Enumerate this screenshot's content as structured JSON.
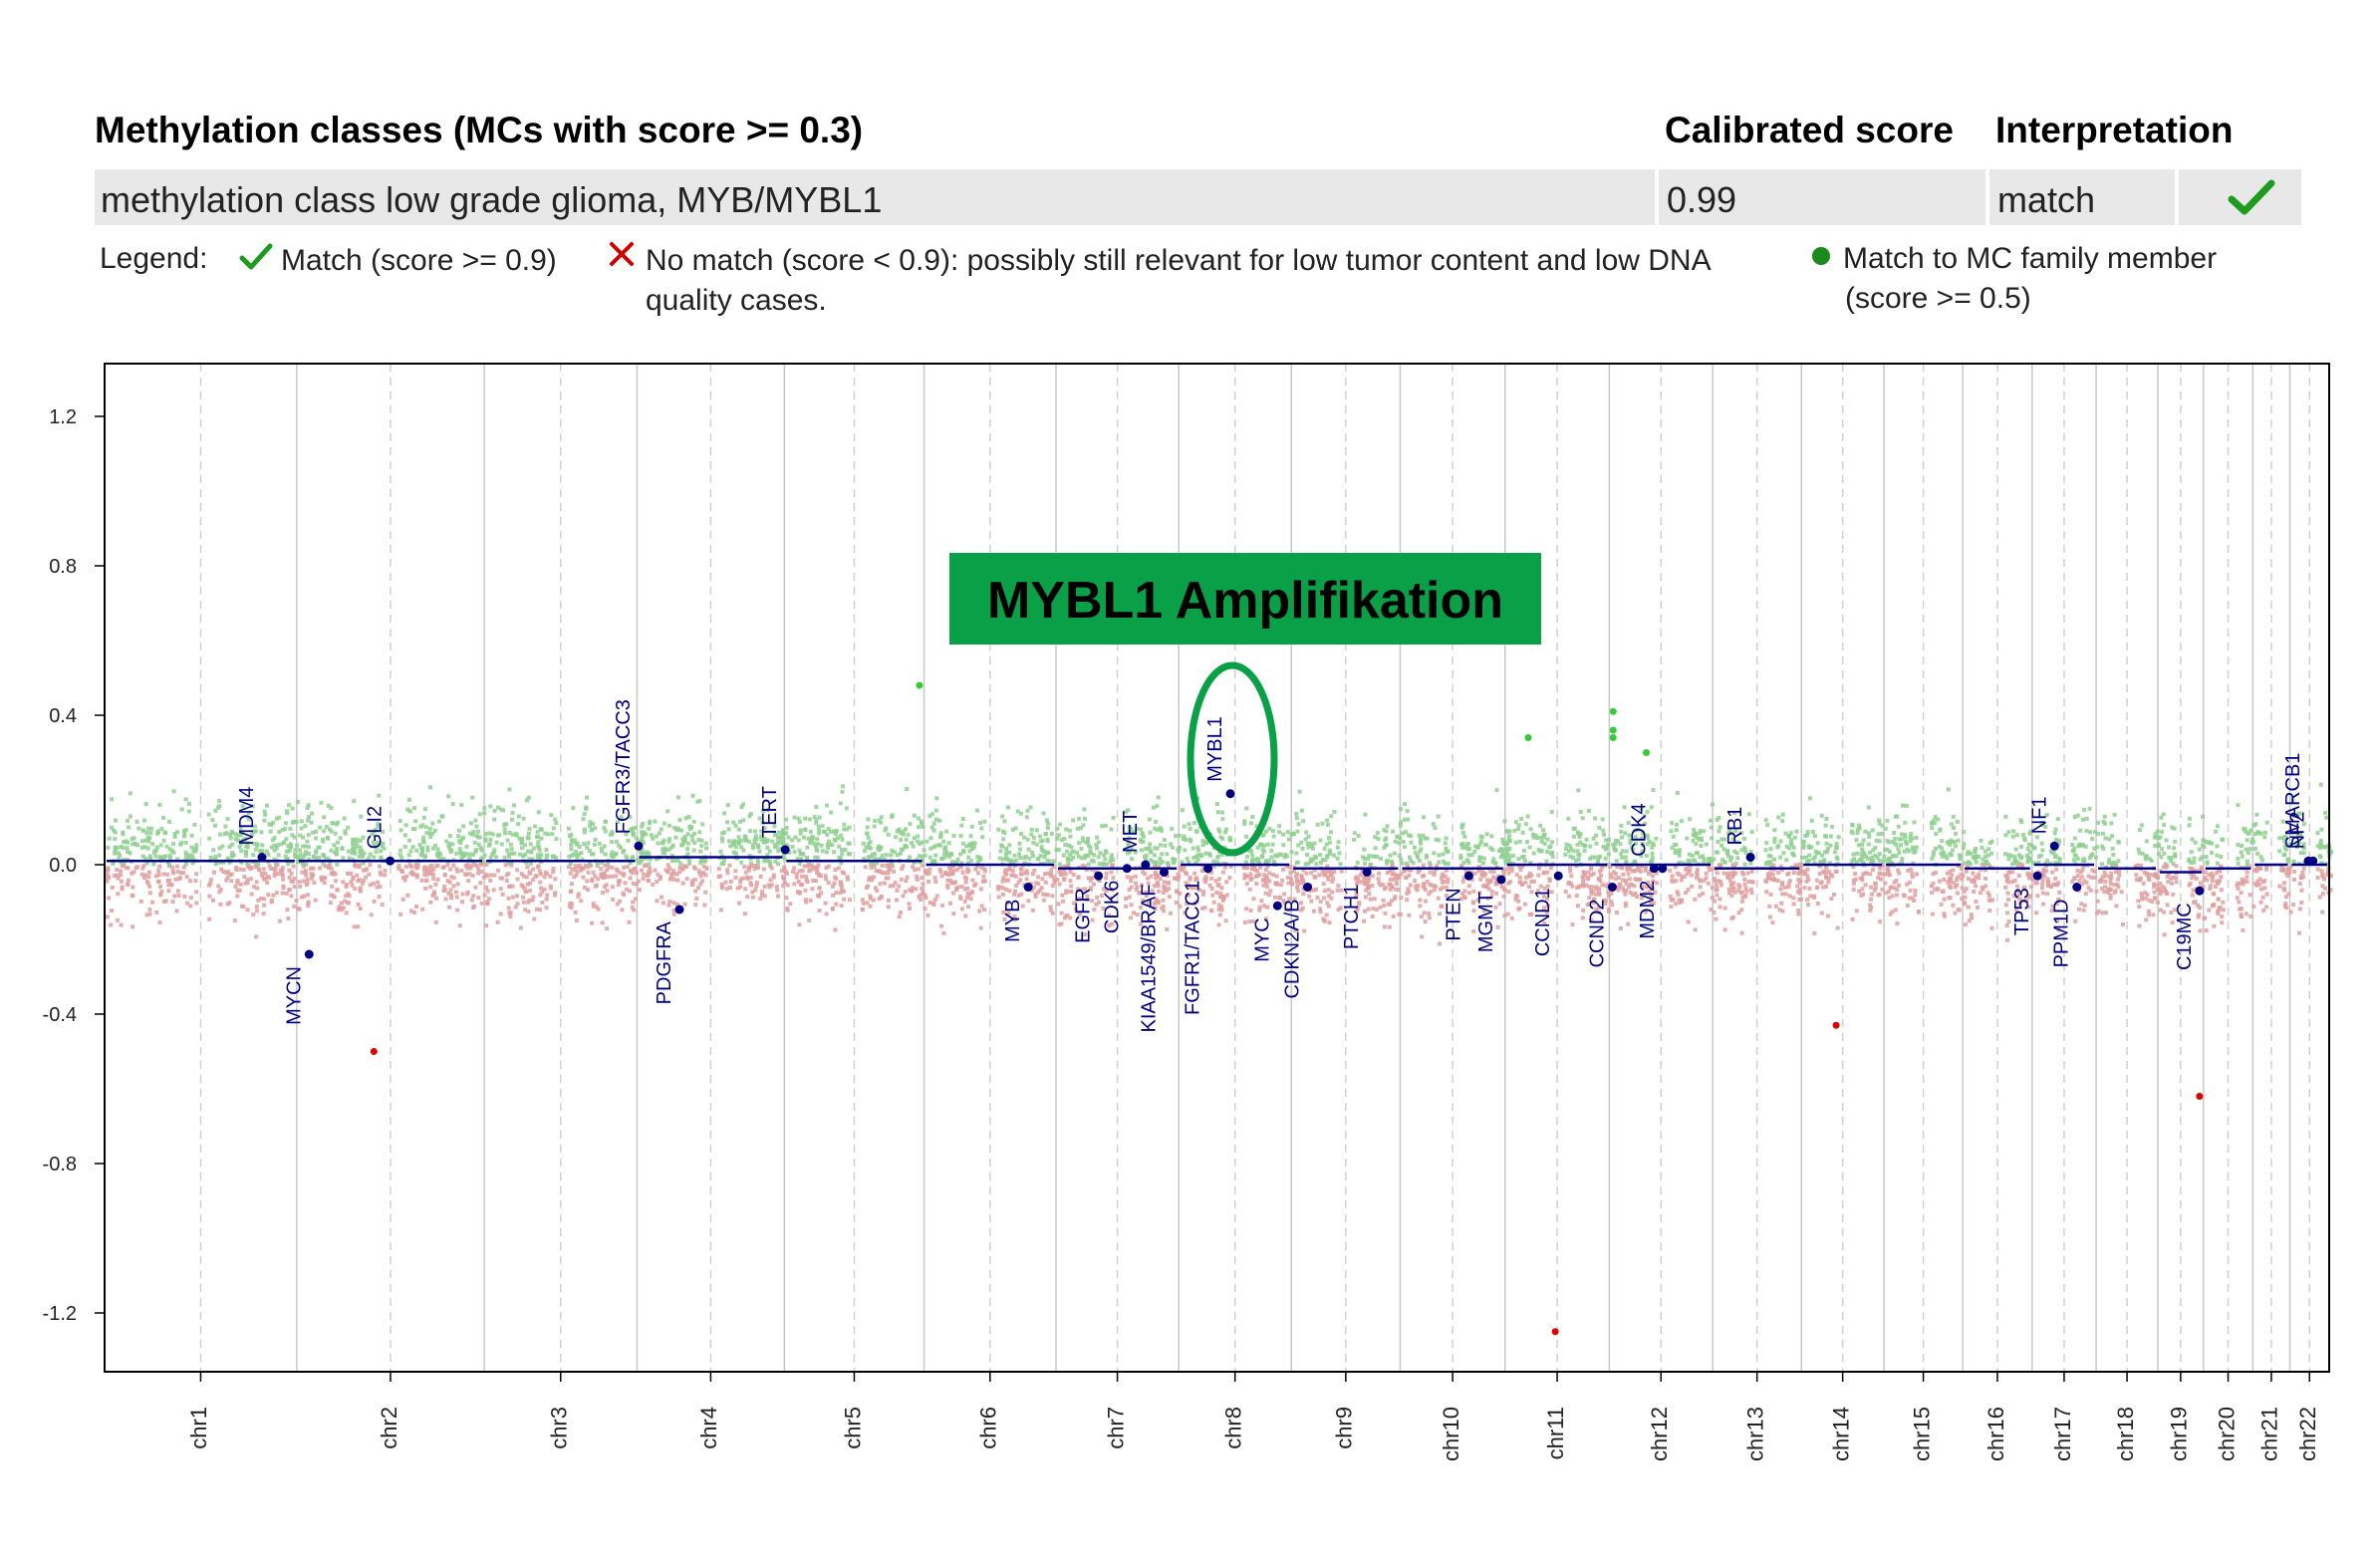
{
  "table": {
    "header": {
      "classes": "Methylation classes (MCs with score >= 0.3)",
      "score": "Calibrated score",
      "interpretation": "Interpretation"
    },
    "row": {
      "class_name": "methylation class low grade glioma, MYB/MYBL1",
      "score": "0.99",
      "interpretation": "match",
      "status_icon": "check-icon"
    }
  },
  "legend": {
    "title": "Legend:",
    "match": "Match (score >= 0.9)",
    "no_match_line1": "No match (score < 0.9): possibly still relevant for low tumor content and low DNA",
    "no_match_line2": "quality cases.",
    "family_line1": "Match to MC family member",
    "family_line2": "(score >= 0.5)"
  },
  "colors": {
    "gain": "#8fd08f",
    "loss": "#e0a0a0",
    "segment": "#00008b",
    "gene": "#000080",
    "annotation_fill": "#0aa048",
    "outlier_red": "#dd0000",
    "outlier_green": "#33cc33",
    "check_green": "#1e9b1e",
    "cross_red": "#cc0000"
  },
  "annotation": {
    "label": "MYBL1 Amplifikation"
  },
  "chart_data": {
    "type": "scatter",
    "title": "",
    "xlabel": "",
    "ylabel": "",
    "ylim": [
      -1.35,
      1.35
    ],
    "yticks": [
      "-1.2",
      "-0.8",
      "-0.4",
      "0.0",
      "0.4",
      "0.8",
      "1.2"
    ],
    "grid": "vertical chromosome boundaries",
    "chromosomes": [
      {
        "name": "chr1",
        "length": 249
      },
      {
        "name": "chr2",
        "length": 243
      },
      {
        "name": "chr3",
        "length": 198
      },
      {
        "name": "chr4",
        "length": 191
      },
      {
        "name": "chr5",
        "length": 181
      },
      {
        "name": "chr6",
        "length": 171
      },
      {
        "name": "chr7",
        "length": 159
      },
      {
        "name": "chr8",
        "length": 146
      },
      {
        "name": "chr9",
        "length": 141
      },
      {
        "name": "chr10",
        "length": 136
      },
      {
        "name": "chr11",
        "length": 135
      },
      {
        "name": "chr12",
        "length": 134
      },
      {
        "name": "chr13",
        "length": 115
      },
      {
        "name": "chr14",
        "length": 107
      },
      {
        "name": "chr15",
        "length": 102
      },
      {
        "name": "chr16",
        "length": 90
      },
      {
        "name": "chr17",
        "length": 83
      },
      {
        "name": "chr18",
        "length": 80
      },
      {
        "name": "chr19",
        "length": 59
      },
      {
        "name": "chr20",
        "length": 64
      },
      {
        "name": "chr21",
        "length": 48
      },
      {
        "name": "chr22",
        "length": 51
      }
    ],
    "segments": [
      {
        "chr": "chr1",
        "value": 0.01
      },
      {
        "chr": "chr2",
        "value": 0.01
      },
      {
        "chr": "chr3",
        "value": 0.01
      },
      {
        "chr": "chr4",
        "value": 0.02
      },
      {
        "chr": "chr5",
        "value": 0.01
      },
      {
        "chr": "chr6",
        "value": 0.0
      },
      {
        "chr": "chr7",
        "value": -0.01
      },
      {
        "chr": "chr8",
        "value": 0.0
      },
      {
        "chr": "chr9",
        "value": -0.01
      },
      {
        "chr": "chr10",
        "value": -0.01
      },
      {
        "chr": "chr11",
        "value": 0.0
      },
      {
        "chr": "chr12",
        "value": 0.0
      },
      {
        "chr": "chr13",
        "value": -0.01
      },
      {
        "chr": "chr14",
        "value": 0.0
      },
      {
        "chr": "chr15",
        "value": 0.0
      },
      {
        "chr": "chr16",
        "value": -0.01
      },
      {
        "chr": "chr17",
        "value": 0.0
      },
      {
        "chr": "chr18",
        "value": -0.01
      },
      {
        "chr": "chr19",
        "value": -0.02
      },
      {
        "chr": "chr20",
        "value": -0.01
      },
      {
        "chr": "chr21",
        "value": 0.0
      },
      {
        "chr": "chr22",
        "value": 0.0
      }
    ],
    "genes": [
      {
        "name": "MDM4",
        "chr": "chr1",
        "pos": 204,
        "value": 0.02,
        "side": "up"
      },
      {
        "name": "MYCN",
        "chr": "chr2",
        "pos": 16,
        "value": -0.24,
        "side": "down"
      },
      {
        "name": "GLI2",
        "chr": "chr2",
        "pos": 121,
        "value": 0.01,
        "side": "up"
      },
      {
        "name": "FGFR3/TACC3",
        "chr": "chr4",
        "pos": 2,
        "value": 0.05,
        "side": "up"
      },
      {
        "name": "PDGFRA",
        "chr": "chr4",
        "pos": 55,
        "value": -0.12,
        "side": "down"
      },
      {
        "name": "TERT",
        "chr": "chr5",
        "pos": 1,
        "value": 0.04,
        "side": "up"
      },
      {
        "name": "MYB",
        "chr": "chr6",
        "pos": 135,
        "value": -0.06,
        "side": "down"
      },
      {
        "name": "EGFR",
        "chr": "chr7",
        "pos": 55,
        "value": -0.03,
        "side": "down"
      },
      {
        "name": "CDK6",
        "chr": "chr7",
        "pos": 92,
        "value": -0.01,
        "side": "down"
      },
      {
        "name": "MET",
        "chr": "chr7",
        "pos": 116,
        "value": 0.0,
        "side": "up"
      },
      {
        "name": "KIAA1549/BRAF",
        "chr": "chr7",
        "pos": 140,
        "value": -0.02,
        "side": "down"
      },
      {
        "name": "FGFR1/TACC1",
        "chr": "chr8",
        "pos": 38,
        "value": -0.01,
        "side": "down"
      },
      {
        "name": "MYBL1",
        "chr": "chr8",
        "pos": 67,
        "value": 0.19,
        "side": "up"
      },
      {
        "name": "MYC",
        "chr": "chr8",
        "pos": 128,
        "value": -0.11,
        "side": "down"
      },
      {
        "name": "CDKN2A/B",
        "chr": "chr9",
        "pos": 21,
        "value": -0.06,
        "side": "down"
      },
      {
        "name": "PTCH1",
        "chr": "chr9",
        "pos": 98,
        "value": -0.02,
        "side": "down"
      },
      {
        "name": "PTEN",
        "chr": "chr10",
        "pos": 89,
        "value": -0.03,
        "side": "down"
      },
      {
        "name": "MGMT",
        "chr": "chr10",
        "pos": 131,
        "value": -0.04,
        "side": "down"
      },
      {
        "name": "CCND1",
        "chr": "chr11",
        "pos": 69,
        "value": -0.03,
        "side": "down"
      },
      {
        "name": "CCND2",
        "chr": "chr12",
        "pos": 4,
        "value": -0.06,
        "side": "down"
      },
      {
        "name": "CDK4",
        "chr": "chr12",
        "pos": 58,
        "value": -0.01,
        "side": "up"
      },
      {
        "name": "MDM2",
        "chr": "chr12",
        "pos": 69,
        "value": -0.01,
        "side": "down"
      },
      {
        "name": "RB1",
        "chr": "chr13",
        "pos": 49,
        "value": 0.02,
        "side": "up"
      },
      {
        "name": "TP53",
        "chr": "chr17",
        "pos": 7,
        "value": -0.03,
        "side": "down"
      },
      {
        "name": "NF1",
        "chr": "chr17",
        "pos": 29,
        "value": 0.05,
        "side": "up"
      },
      {
        "name": "PPM1D",
        "chr": "chr17",
        "pos": 58,
        "value": -0.06,
        "side": "down"
      },
      {
        "name": "C19MC",
        "chr": "chr19",
        "pos": 54,
        "value": -0.07,
        "side": "down"
      },
      {
        "name": "SMARCB1",
        "chr": "chr22",
        "pos": 24,
        "value": 0.01,
        "side": "up"
      },
      {
        "name": "NF2",
        "chr": "chr22",
        "pos": 30,
        "value": 0.01,
        "side": "up"
      }
    ],
    "outliers": [
      {
        "chr": "chr2",
        "pos": 100,
        "value": -0.5,
        "color": "red"
      },
      {
        "chr": "chr11",
        "pos": 65,
        "value": -1.25,
        "color": "red"
      },
      {
        "chr": "chr14",
        "pos": 45,
        "value": -0.43,
        "color": "red"
      },
      {
        "chr": "chr19",
        "pos": 54,
        "value": -0.62,
        "color": "red"
      },
      {
        "chr": "chr5",
        "pos": 175,
        "value": 0.48,
        "color": "green"
      },
      {
        "chr": "chr12",
        "pos": 5,
        "value": 0.41,
        "color": "green"
      },
      {
        "chr": "chr12",
        "pos": 5,
        "value": 0.36,
        "color": "green"
      },
      {
        "chr": "chr12",
        "pos": 5,
        "value": 0.34,
        "color": "green"
      },
      {
        "chr": "chr12",
        "pos": 48,
        "value": 0.3,
        "color": "green"
      },
      {
        "chr": "chr11",
        "pos": 30,
        "value": 0.34,
        "color": "green"
      }
    ]
  }
}
